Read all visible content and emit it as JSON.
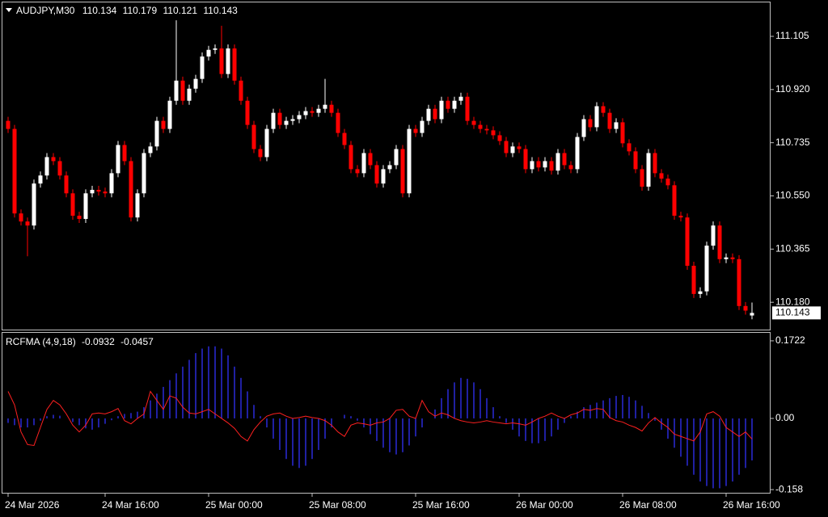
{
  "chart_data": [
    {
      "type": "candlestick",
      "title": "AUDJPY,M30",
      "categories": [
        "24 Mar 2026",
        null,
        null,
        null,
        null,
        null,
        null,
        null,
        null,
        null,
        null,
        null,
        null,
        null,
        null,
        "24 Mar 16:00",
        null,
        null,
        null,
        null,
        null,
        null,
        null,
        null,
        null,
        null,
        null,
        null,
        null,
        null,
        null,
        "25 Mar 00:00",
        null,
        null,
        null,
        null,
        null,
        null,
        null,
        null,
        null,
        null,
        null,
        null,
        null,
        null,
        null,
        "25 Mar 08:00",
        null,
        null,
        null,
        null,
        null,
        null,
        null,
        null,
        null,
        null,
        null,
        null,
        null,
        null,
        null,
        "25 Mar 16:00",
        null,
        null,
        null,
        null,
        null,
        null,
        null,
        null,
        null,
        null,
        null,
        null,
        null,
        null,
        null,
        "26 Mar 00:00",
        null,
        null,
        null,
        null,
        null,
        null,
        null,
        null,
        null,
        null,
        null,
        null,
        null,
        null,
        null,
        "26 Mar 08:00",
        null,
        null,
        null,
        null,
        null,
        null,
        null,
        null,
        null,
        null,
        null,
        null,
        null,
        null,
        null,
        "26 Mar 16:00",
        null,
        null,
        null,
        null
      ],
      "open": [
        110.811,
        110.783,
        110.489,
        110.461,
        110.447,
        110.593,
        110.621,
        110.685,
        110.671,
        110.621,
        110.559,
        110.481,
        110.47,
        110.559,
        110.571,
        110.565,
        110.559,
        110.629,
        110.727,
        110.671,
        110.475,
        110.559,
        110.699,
        110.722,
        110.811,
        110.783,
        110.881,
        110.951,
        110.881,
        110.923,
        110.957,
        111.035,
        111.058,
        111.063,
        110.974,
        111.063,
        110.951,
        110.881,
        110.797,
        110.713,
        110.685,
        110.783,
        110.839,
        110.797,
        110.811,
        110.817,
        110.831,
        110.845,
        110.839,
        110.853,
        110.867,
        110.839,
        110.769,
        110.727,
        110.643,
        110.629,
        110.699,
        110.657,
        110.593,
        110.643,
        110.657,
        110.713,
        110.559,
        110.783,
        110.769,
        110.811,
        110.853,
        110.817,
        110.881,
        110.853,
        110.881,
        110.895,
        110.811,
        110.797,
        110.783,
        110.778,
        110.761,
        110.741,
        110.699,
        110.722,
        110.713,
        110.643,
        110.671,
        110.649,
        110.671,
        110.638,
        110.699,
        110.657,
        110.643,
        110.755,
        110.817,
        110.789,
        110.862,
        110.839,
        110.783,
        110.806,
        110.733,
        110.705,
        110.643,
        110.582,
        110.699,
        110.629,
        110.61,
        110.587,
        110.481,
        110.475,
        110.307,
        110.209,
        110.218,
        110.377,
        110.447,
        110.33,
        110.336,
        110.33,
        110.167,
        110.134
      ],
      "high": [
        110.825,
        110.797,
        110.503,
        110.475,
        110.607,
        110.635,
        110.699,
        110.699,
        110.685,
        110.635,
        110.573,
        110.495,
        110.573,
        110.585,
        110.585,
        110.579,
        110.643,
        110.741,
        110.741,
        110.685,
        110.573,
        110.713,
        110.736,
        110.825,
        110.825,
        110.895,
        111.161,
        110.965,
        110.937,
        110.971,
        111.049,
        111.072,
        111.077,
        111.142,
        111.077,
        111.077,
        110.965,
        110.895,
        110.811,
        110.727,
        110.797,
        110.853,
        110.853,
        110.825,
        110.831,
        110.845,
        110.859,
        110.859,
        110.867,
        110.957,
        110.881,
        110.853,
        110.783,
        110.741,
        110.657,
        110.713,
        110.713,
        110.671,
        110.657,
        110.671,
        110.727,
        110.727,
        110.797,
        110.797,
        110.825,
        110.867,
        110.867,
        110.895,
        110.895,
        110.895,
        110.909,
        110.909,
        110.825,
        110.811,
        110.797,
        110.792,
        110.775,
        110.755,
        110.736,
        110.736,
        110.727,
        110.685,
        110.685,
        110.685,
        110.685,
        110.713,
        110.713,
        110.671,
        110.769,
        110.831,
        110.831,
        110.876,
        110.876,
        110.853,
        110.82,
        110.82,
        110.747,
        110.719,
        110.657,
        110.713,
        110.713,
        110.643,
        110.624,
        110.601,
        110.495,
        110.489,
        110.321,
        110.232,
        110.391,
        110.461,
        110.461,
        110.35,
        110.35,
        110.344,
        110.181,
        110.179
      ],
      "low": [
        110.769,
        110.475,
        110.447,
        110.34,
        110.433,
        110.579,
        110.607,
        110.657,
        110.607,
        110.545,
        110.467,
        110.456,
        110.456,
        110.545,
        110.551,
        110.545,
        110.545,
        110.615,
        110.657,
        110.461,
        110.461,
        110.545,
        110.685,
        110.708,
        110.769,
        110.769,
        110.867,
        110.867,
        110.867,
        110.909,
        110.943,
        111.021,
        111.044,
        110.96,
        110.96,
        110.937,
        110.867,
        110.783,
        110.699,
        110.671,
        110.671,
        110.769,
        110.783,
        110.783,
        110.797,
        110.803,
        110.817,
        110.825,
        110.825,
        110.839,
        110.825,
        110.755,
        110.713,
        110.629,
        110.615,
        110.615,
        110.643,
        110.579,
        110.579,
        110.629,
        110.643,
        110.545,
        110.545,
        110.755,
        110.755,
        110.797,
        110.803,
        110.803,
        110.839,
        110.839,
        110.867,
        110.797,
        110.783,
        110.769,
        110.764,
        110.747,
        110.727,
        110.685,
        110.685,
        110.699,
        110.629,
        110.629,
        110.635,
        110.635,
        110.624,
        110.624,
        110.643,
        110.629,
        110.629,
        110.741,
        110.775,
        110.775,
        110.825,
        110.769,
        110.769,
        110.719,
        110.691,
        110.629,
        110.568,
        110.568,
        110.615,
        110.596,
        110.573,
        110.467,
        110.461,
        110.293,
        110.195,
        110.195,
        110.204,
        110.363,
        110.316,
        110.316,
        110.316,
        110.153,
        110.137,
        110.121
      ],
      "close": [
        110.783,
        110.489,
        110.461,
        110.447,
        110.593,
        110.621,
        110.685,
        110.671,
        110.621,
        110.559,
        110.481,
        110.47,
        110.559,
        110.571,
        110.565,
        110.559,
        110.629,
        110.727,
        110.671,
        110.475,
        110.559,
        110.699,
        110.722,
        110.811,
        110.783,
        110.881,
        110.951,
        110.881,
        110.923,
        110.957,
        111.035,
        111.058,
        111.063,
        110.974,
        111.063,
        110.951,
        110.881,
        110.797,
        110.713,
        110.685,
        110.783,
        110.839,
        110.797,
        110.811,
        110.817,
        110.831,
        110.845,
        110.839,
        110.853,
        110.867,
        110.839,
        110.769,
        110.727,
        110.643,
        110.629,
        110.699,
        110.657,
        110.593,
        110.643,
        110.657,
        110.713,
        110.559,
        110.783,
        110.769,
        110.811,
        110.853,
        110.817,
        110.881,
        110.853,
        110.881,
        110.895,
        110.811,
        110.797,
        110.783,
        110.778,
        110.761,
        110.741,
        110.699,
        110.722,
        110.713,
        110.643,
        110.671,
        110.649,
        110.671,
        110.638,
        110.699,
        110.657,
        110.643,
        110.755,
        110.817,
        110.789,
        110.862,
        110.839,
        110.783,
        110.806,
        110.733,
        110.705,
        110.643,
        110.582,
        110.699,
        110.629,
        110.61,
        110.587,
        110.481,
        110.475,
        110.307,
        110.209,
        110.218,
        110.377,
        110.447,
        110.33,
        110.336,
        110.33,
        110.167,
        110.151,
        110.143
      ],
      "up_color": "#ffffff",
      "down_color": "#ff0000",
      "ylim": [
        110.085,
        111.223
      ],
      "yticks": [
        111.105,
        {
          "value": 110.92,
          "label": "110.920"
        },
        110.735,
        {
          "value": 110.55,
          "label": "110.550"
        },
        110.365,
        {
          "value": 110.18,
          "label": "110.180"
        }
      ]
    },
    {
      "type": "oscillator",
      "title": "RCFMA (4,9,18)",
      "series": [
        {
          "kind": "bar",
          "color": "#2a2ad8",
          "values": [
            -0.01,
            -0.015,
            -0.02,
            -0.02,
            -0.015,
            -0.005,
            0.005,
            0.008,
            0.006,
            0.0,
            -0.008,
            -0.015,
            -0.022,
            -0.025,
            -0.02,
            -0.012,
            -0.004,
            0.005,
            0.01,
            0.012,
            0.015,
            0.025,
            0.04,
            0.055,
            0.07,
            0.085,
            0.1,
            0.115,
            0.13,
            0.145,
            0.155,
            0.16,
            0.16,
            0.155,
            0.14,
            0.115,
            0.09,
            0.06,
            0.03,
            0.005,
            -0.02,
            -0.045,
            -0.07,
            -0.09,
            -0.105,
            -0.11,
            -0.105,
            -0.09,
            -0.07,
            -0.045,
            -0.02,
            0.0,
            0.008,
            0.005,
            -0.005,
            -0.02,
            -0.035,
            -0.05,
            -0.065,
            -0.075,
            -0.08,
            -0.075,
            -0.06,
            -0.04,
            -0.02,
            0.0,
            0.02,
            0.045,
            0.065,
            0.08,
            0.09,
            0.088,
            0.08,
            0.065,
            0.045,
            0.025,
            0.005,
            -0.01,
            -0.025,
            -0.04,
            -0.05,
            -0.055,
            -0.055,
            -0.05,
            -0.04,
            -0.025,
            -0.01,
            0.005,
            0.015,
            0.025,
            0.03,
            0.035,
            0.04,
            0.045,
            0.05,
            0.052,
            0.048,
            0.04,
            0.028,
            0.012,
            -0.005,
            -0.025,
            -0.045,
            -0.065,
            -0.085,
            -0.105,
            -0.125,
            -0.14,
            -0.15,
            -0.155,
            -0.155,
            -0.15,
            -0.14,
            -0.125,
            -0.11,
            -0.0932
          ]
        },
        {
          "kind": "line",
          "color": "#ff2020",
          "values": [
            0.06,
            0.03,
            -0.03,
            -0.058,
            -0.06,
            -0.02,
            0.02,
            0.04,
            0.03,
            0.01,
            -0.015,
            -0.03,
            -0.015,
            0.01,
            0.012,
            0.01,
            0.015,
            0.022,
            -0.005,
            -0.012,
            0.0,
            0.01,
            0.06,
            0.04,
            0.02,
            0.05,
            0.045,
            0.025,
            0.012,
            0.01,
            0.015,
            0.02,
            0.01,
            0.0,
            -0.01,
            -0.022,
            -0.04,
            -0.05,
            -0.025,
            -0.008,
            0.005,
            0.01,
            0.012,
            0.005,
            0.0,
            0.002,
            0.005,
            0.002,
            0.0,
            -0.005,
            -0.015,
            -0.03,
            -0.04,
            -0.015,
            -0.01,
            -0.012,
            -0.015,
            -0.01,
            -0.008,
            0.0,
            0.018,
            0.02,
            0.005,
            0.0,
            0.04,
            0.015,
            0.005,
            0.012,
            0.008,
            0.0,
            -0.005,
            -0.008,
            -0.01,
            -0.008,
            -0.005,
            -0.008,
            -0.01,
            -0.012,
            -0.01,
            -0.012,
            -0.015,
            -0.008,
            0.0,
            0.005,
            0.012,
            0.005,
            0.0,
            0.008,
            0.012,
            0.02,
            0.018,
            0.022,
            0.02,
            0.002,
            -0.005,
            -0.008,
            -0.015,
            -0.02,
            -0.028,
            -0.01,
            0.002,
            -0.01,
            -0.02,
            -0.035,
            -0.04,
            -0.045,
            -0.05,
            -0.03,
            0.01,
            0.015,
            0.005,
            -0.02,
            -0.03,
            -0.04,
            -0.03,
            -0.0457
          ]
        }
      ],
      "ylim": [
        -0.165,
        0.19
      ],
      "yticks": [
        0.1722,
        {
          "value": 0,
          "label": "0.00"
        },
        -0.158
      ]
    }
  ]
}
